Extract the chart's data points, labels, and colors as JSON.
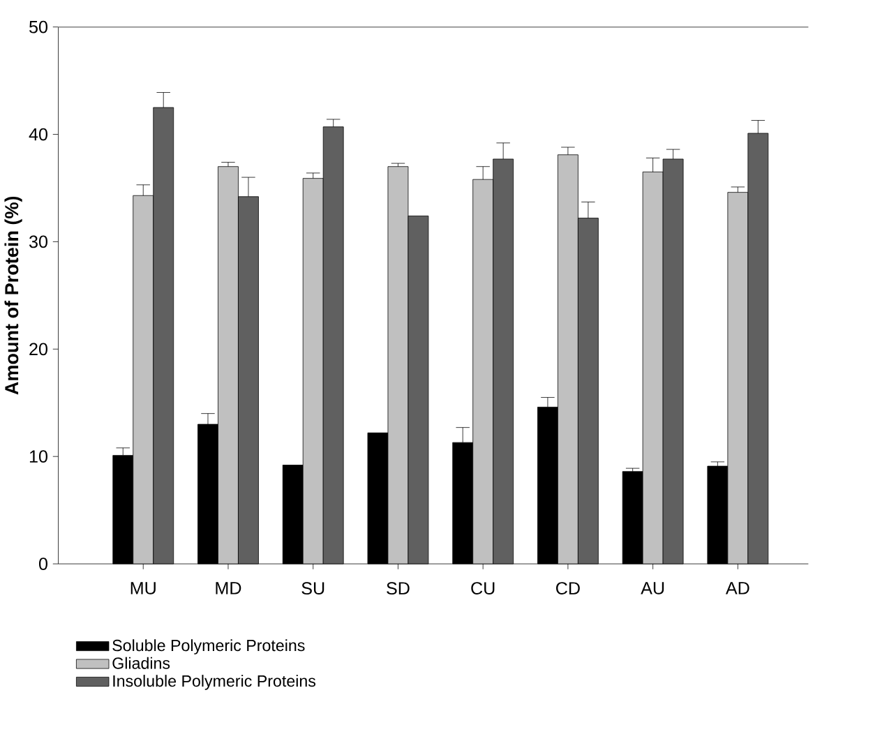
{
  "chart_data": {
    "type": "bar",
    "ylabel": "Amount of Protein (%)",
    "categories": [
      "MU",
      "MD",
      "SU",
      "SD",
      "CU",
      "CD",
      "AU",
      "AD"
    ],
    "series": [
      {
        "name": "Soluble Polymeric Proteins",
        "color": "#000000",
        "values": [
          10.1,
          13.0,
          9.2,
          12.2,
          11.3,
          14.6,
          8.6,
          9.1
        ],
        "errors": [
          [
            10.1,
            10.8
          ],
          [
            13.0,
            14.0
          ],
          null,
          null,
          [
            11.3,
            12.7
          ],
          [
            14.6,
            15.5
          ],
          [
            8.6,
            8.9
          ],
          [
            9.1,
            9.5
          ]
        ]
      },
      {
        "name": "Gliadins",
        "color": "#c0c0c0",
        "values": [
          34.3,
          37.0,
          35.9,
          37.0,
          35.8,
          38.1,
          36.5,
          34.6
        ],
        "errors": [
          [
            34.3,
            35.3
          ],
          [
            37.0,
            37.4
          ],
          [
            35.9,
            36.4
          ],
          [
            37.0,
            37.3
          ],
          [
            35.8,
            37.0
          ],
          [
            38.1,
            38.8
          ],
          [
            36.5,
            37.8
          ],
          [
            34.6,
            35.1
          ]
        ]
      },
      {
        "name": "Insoluble Polymeric Proteins",
        "color": "#606060",
        "values": [
          42.5,
          34.2,
          40.7,
          32.4,
          37.7,
          32.2,
          37.7,
          40.1
        ],
        "errors": [
          [
            42.5,
            43.9
          ],
          [
            34.2,
            36.0
          ],
          [
            40.7,
            41.4
          ],
          null,
          [
            37.7,
            39.2
          ],
          [
            32.2,
            33.7
          ],
          [
            37.7,
            38.6
          ],
          [
            40.1,
            41.3
          ]
        ]
      }
    ],
    "ylim": [
      0,
      50
    ],
    "yticks": [
      0,
      10,
      20,
      30,
      40,
      50
    ],
    "legend": "bottom",
    "grid": false
  }
}
